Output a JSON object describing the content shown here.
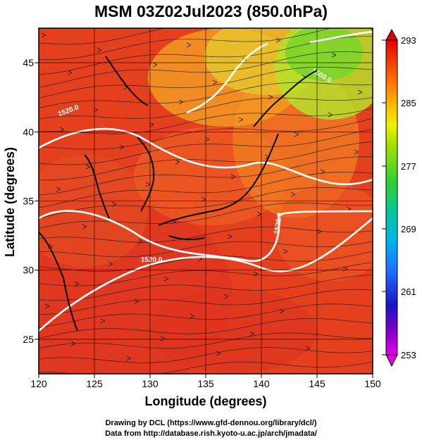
{
  "title": "MSM 03Z02Jul2023 (850.0hPa)",
  "x_axis": {
    "label": "Longitude (degrees)",
    "ticks": [
      120,
      125,
      130,
      135,
      140,
      145,
      150
    ]
  },
  "y_axis": {
    "label": "Latitude  (degrees)",
    "ticks": [
      25,
      30,
      35,
      40,
      45
    ]
  },
  "colorbar": {
    "ticks": [
      "293",
      "285",
      "277",
      "269",
      "261",
      "253"
    ],
    "colors": [
      "#e30000",
      "#ff6a00",
      "#ffb400",
      "#f0ee00",
      "#9ee000",
      "#2fd22f",
      "#00c6a0",
      "#00b4ee",
      "#1d6bff",
      "#1a14c8",
      "#7a00c8",
      "#e600e6"
    ]
  },
  "contour_labels": [
    "1520.0",
    "1520.0",
    "1520.0",
    "1500.0"
  ],
  "map": {
    "lon_range": [
      120,
      150
    ],
    "lat_range": [
      22.5,
      47.5
    ],
    "grid_lon": [
      120,
      125,
      130,
      135,
      140,
      145,
      150
    ],
    "grid_lat": [
      25,
      30,
      35,
      40,
      45
    ],
    "fill_colors": [
      "#d8301c",
      "#e2401f",
      "#ec5a22",
      "#f07a22",
      "#f29a22",
      "#e8c42a",
      "#b6e02a",
      "#7cd42a"
    ]
  },
  "credits": [
    "Drawing by DCL (https://www.gfd-dennou.org/library/dcl/)",
    "Data from http://database.rish.kyoto-u.ac.jp/arch/jmadata/"
  ]
}
